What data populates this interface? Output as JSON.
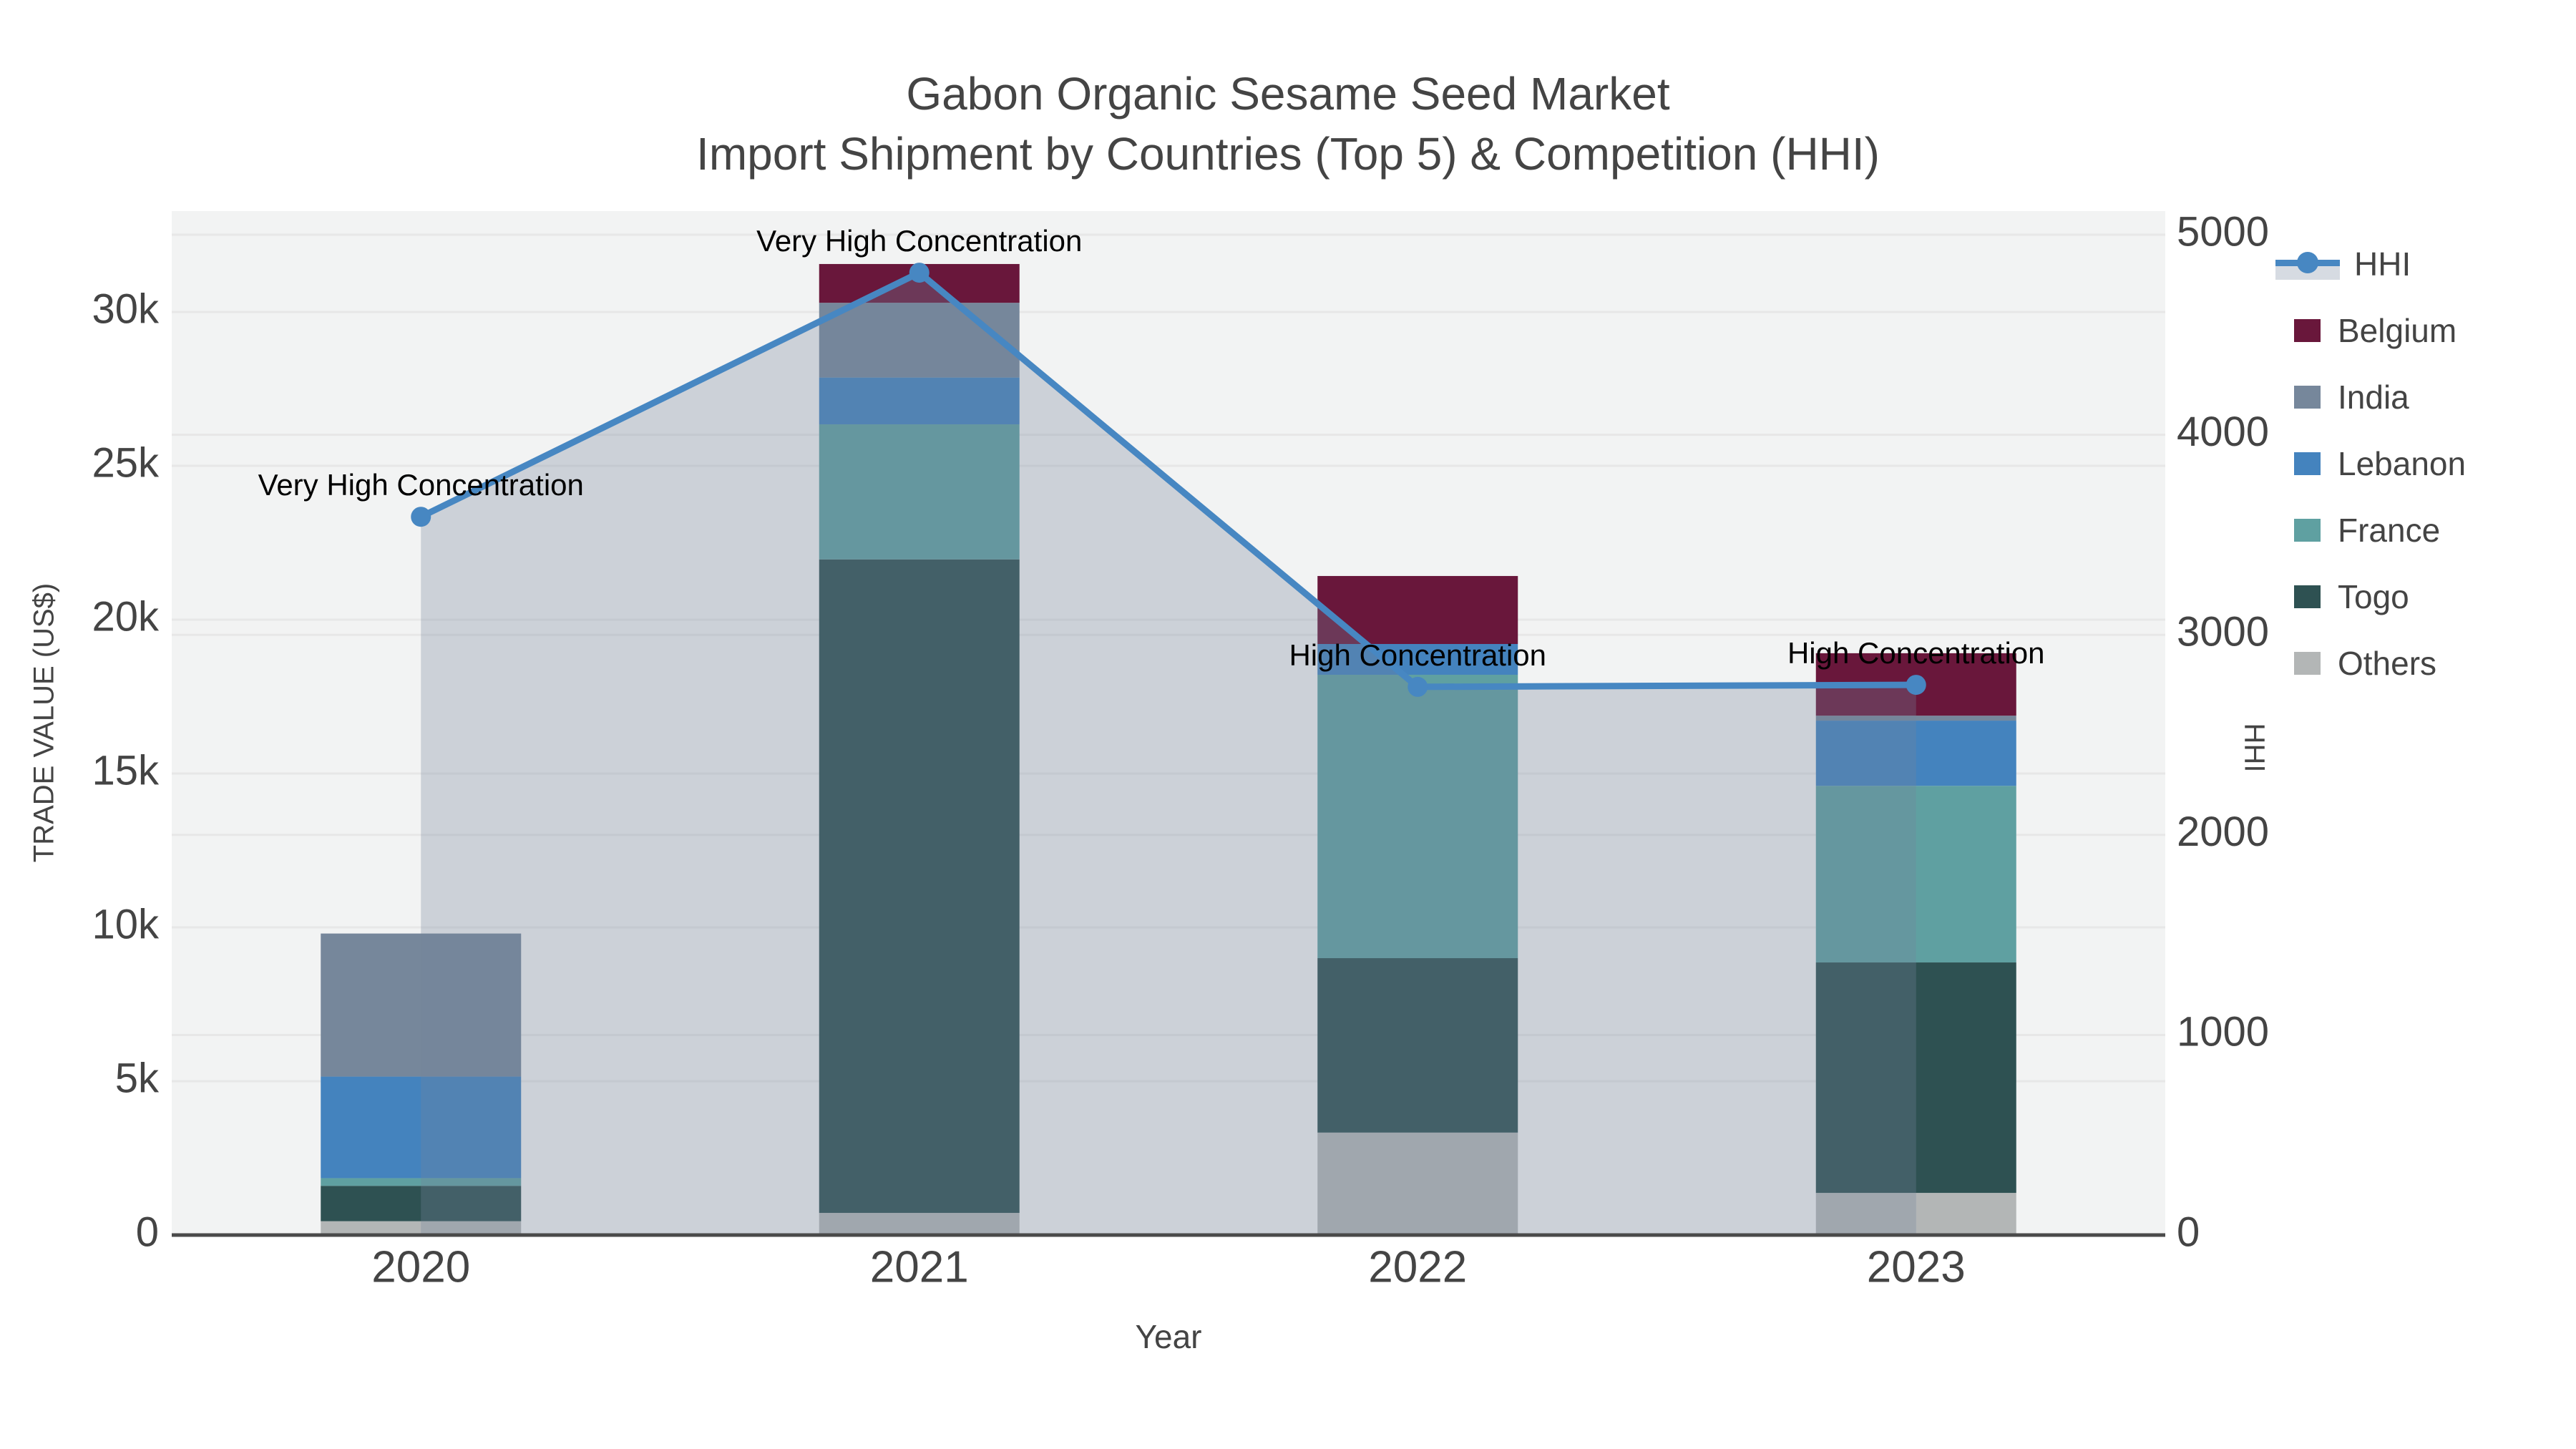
{
  "title": {
    "line1": "Gabon Organic Sesame Seed Market",
    "line2": "Import Shipment by Countries (Top 5) & Competition (HHI)"
  },
  "axes": {
    "x": {
      "title": "Year",
      "categories": [
        "2020",
        "2021",
        "2022",
        "2023"
      ]
    },
    "left": {
      "title": "TRADE VALUE (US$)",
      "tick_labels": [
        "0",
        "5k",
        "10k",
        "15k",
        "20k",
        "25k",
        "30k"
      ],
      "tick_values": [
        0,
        5000,
        10000,
        15000,
        20000,
        25000,
        30000
      ],
      "range": [
        0,
        33280
      ]
    },
    "right": {
      "title": "HHI",
      "tick_labels": [
        "0",
        "1000",
        "2000",
        "3000",
        "4000",
        "5000"
      ],
      "tick_values": [
        0,
        1000,
        2000,
        3000,
        4000,
        5000
      ],
      "range": [
        0,
        5118
      ]
    }
  },
  "legend": {
    "items": [
      {
        "label": "HHI",
        "type": "line",
        "color": "#4787C2"
      },
      {
        "label": "Belgium",
        "type": "bar",
        "color": "#69173B"
      },
      {
        "label": "India",
        "type": "bar",
        "color": "#76879B"
      },
      {
        "label": "Lebanon",
        "type": "bar",
        "color": "#4483BE"
      },
      {
        "label": "France",
        "type": "bar",
        "color": "#5FA0A1"
      },
      {
        "label": "Togo",
        "type": "bar",
        "color": "#2E5152"
      },
      {
        "label": "Others",
        "type": "bar",
        "color": "#B3B6B6"
      }
    ]
  },
  "chart_data": {
    "type": "bar",
    "subtype": "stacked bars (left axis) + line with markers and translucent area fill (right axis)",
    "title": "Gabon Organic Sesame Seed Market Import Shipment by Countries (Top 5) & Competition (HHI)",
    "xlabel": "Year",
    "ylabel": "TRADE VALUE (US$)",
    "y2label": "HHI",
    "categories": [
      "2020",
      "2021",
      "2022",
      "2023"
    ],
    "series": [
      {
        "name": "Belgium",
        "axis": "left",
        "color": "#69173B",
        "values": [
          0,
          1260,
          2210,
          2030
        ]
      },
      {
        "name": "India",
        "axis": "left",
        "color": "#76879B",
        "values": [
          4650,
          2430,
          0,
          160
        ]
      },
      {
        "name": "Lebanon",
        "axis": "left",
        "color": "#4483BE",
        "values": [
          3300,
          1520,
          1000,
          2120
        ]
      },
      {
        "name": "France",
        "axis": "left",
        "color": "#5FA0A1",
        "values": [
          250,
          4390,
          9210,
          5740
        ]
      },
      {
        "name": "Togo",
        "axis": "left",
        "color": "#2E5152",
        "values": [
          1150,
          21240,
          5670,
          7490
        ]
      },
      {
        "name": "Others",
        "axis": "left",
        "color": "#B3B6B6",
        "values": [
          450,
          720,
          3330,
          1370
        ]
      }
    ],
    "stack_order_bottom_to_top": [
      "Others",
      "Togo",
      "France",
      "Lebanon",
      "India",
      "Belgium"
    ],
    "bar_totals": [
      9800,
      31560,
      21420,
      18910
    ],
    "line_series": {
      "name": "HHI",
      "axis": "right",
      "color": "#4787C2",
      "fill_color": "rgba(115,133,157,0.30)",
      "fill": "tozeroy",
      "values": [
        3590,
        4810,
        2740,
        2750
      ]
    },
    "annotations": [
      {
        "category": "2020",
        "text": "Very High Concentration"
      },
      {
        "category": "2021",
        "text": "Very High Concentration"
      },
      {
        "category": "2022",
        "text": "High Concentration"
      },
      {
        "category": "2023",
        "text": "High Concentration"
      }
    ],
    "ylim_left": [
      0,
      33280
    ],
    "ylim_right": [
      0,
      5118
    ],
    "grid": "horizontal gridlines for both axes",
    "legend_position": "outside right, top"
  },
  "style": {
    "plot_bg": "#f2f3f3",
    "grid_color": "#e7e7e7",
    "axis_line_color": "#4a4a4a",
    "tick_label_color": "#444444",
    "annotation_color": "#000000"
  }
}
